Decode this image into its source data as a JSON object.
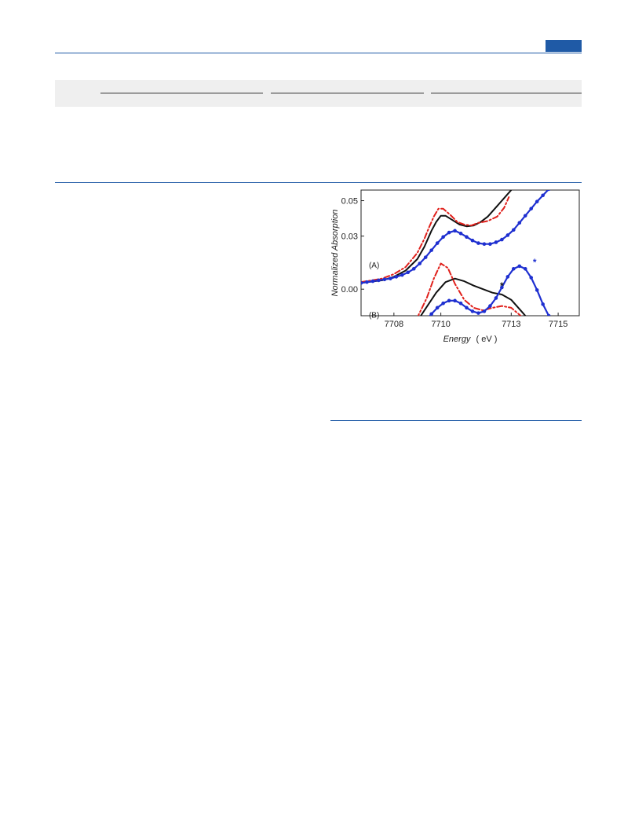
{
  "chart_data": {
    "type": "line",
    "xlabel": "Energy",
    "xunit": "( eV )",
    "ylabel": "Normalized Absorption",
    "xlim": [
      7706.6,
      7715.9
    ],
    "ylim": [
      -0.015,
      0.056
    ],
    "xticks": [
      7708,
      7710,
      7713,
      7715
    ],
    "yticks": [
      "0.00",
      "0.03",
      "0.05"
    ],
    "ytick_values": [
      0.0,
      0.03,
      0.05
    ],
    "panel_labels": [
      {
        "text": "(A)",
        "x": 7706.8,
        "y": 0.012
      },
      {
        "text": "(B)",
        "x": 7706.8,
        "y": -0.016
      }
    ],
    "annotations": [
      {
        "text": "*",
        "x": 7712.6,
        "y": 0.0,
        "color": "#111111"
      },
      {
        "text": "*",
        "x": 7714.0,
        "y": 0.0135,
        "color": "#1e2fd0"
      }
    ],
    "series": [
      {
        "panel": "A",
        "style": "solid",
        "color": "#111111",
        "x": [
          7706.6,
          7707.5,
          7708.0,
          7708.5,
          7709.0,
          7709.3,
          7709.6,
          7709.8,
          7710.0,
          7710.2,
          7710.5,
          7710.8,
          7711.1,
          7711.4,
          7711.7,
          7712.0,
          7712.4,
          7712.8,
          7713.0
        ],
        "y": [
          0.0035,
          0.005,
          0.007,
          0.0105,
          0.017,
          0.024,
          0.033,
          0.038,
          0.0415,
          0.0415,
          0.039,
          0.0365,
          0.0355,
          0.036,
          0.038,
          0.041,
          0.047,
          0.053,
          0.056
        ]
      },
      {
        "panel": "A",
        "style": "dashdot",
        "color": "#e0201b",
        "x": [
          7706.6,
          7707.5,
          7708.0,
          7708.5,
          7709.0,
          7709.3,
          7709.5,
          7709.7,
          7709.9,
          7710.1,
          7710.4,
          7710.7,
          7711.0,
          7711.3,
          7711.6,
          7712.0,
          7712.4,
          7712.7,
          7712.9
        ],
        "y": [
          0.004,
          0.006,
          0.0085,
          0.0125,
          0.0205,
          0.0285,
          0.035,
          0.041,
          0.0455,
          0.0455,
          0.042,
          0.038,
          0.0365,
          0.036,
          0.0375,
          0.0385,
          0.041,
          0.046,
          0.052
        ]
      },
      {
        "panel": "A",
        "style": "markers",
        "color": "#1e2fd0",
        "x": [
          7706.6,
          7706.85,
          7707.1,
          7707.35,
          7707.6,
          7707.85,
          7708.1,
          7708.35,
          7708.6,
          7708.85,
          7709.1,
          7709.35,
          7709.6,
          7709.85,
          7710.1,
          7710.35,
          7710.6,
          7710.85,
          7711.1,
          7711.35,
          7711.6,
          7711.85,
          7712.1,
          7712.35,
          7712.6,
          7712.85,
          7713.1,
          7713.35,
          7713.6,
          7713.85,
          7714.1,
          7714.35,
          7714.6,
          7714.85
        ],
        "y": [
          0.0035,
          0.004,
          0.0045,
          0.005,
          0.0055,
          0.006,
          0.007,
          0.008,
          0.0095,
          0.0115,
          0.0145,
          0.018,
          0.022,
          0.026,
          0.0295,
          0.032,
          0.033,
          0.0315,
          0.0295,
          0.0275,
          0.026,
          0.0255,
          0.0255,
          0.0265,
          0.028,
          0.0305,
          0.0335,
          0.0375,
          0.0415,
          0.0455,
          0.0495,
          0.053,
          0.0565,
          0.06
        ]
      },
      {
        "panel": "B",
        "style": "solid",
        "color": "#111111",
        "x": [
          7706.6,
          7708.0,
          7708.5,
          7709.0,
          7709.4,
          7709.8,
          7710.2,
          7710.6,
          7711.0,
          7711.4,
          7711.8,
          7712.2,
          7712.6,
          7713.0,
          7713.4,
          7713.8,
          7714.3,
          7715.0,
          7715.9
        ],
        "y": [
          -0.0225,
          -0.0225,
          -0.0215,
          -0.018,
          -0.01,
          -0.002,
          0.004,
          0.006,
          0.0045,
          0.002,
          0.0,
          -0.002,
          -0.003,
          -0.006,
          -0.012,
          -0.018,
          -0.022,
          -0.0225,
          -0.0225
        ]
      },
      {
        "panel": "B",
        "style": "dashdot",
        "color": "#e0201b",
        "x": [
          7706.6,
          7708.0,
          7708.6,
          7709.0,
          7709.4,
          7709.7,
          7710.0,
          7710.3,
          7710.6,
          7711.0,
          7711.4,
          7711.8,
          7712.2,
          7712.6,
          7713.0,
          7713.4,
          7713.8,
          7714.2,
          7715.0,
          7715.9
        ],
        "y": [
          -0.0225,
          -0.0225,
          -0.0215,
          -0.016,
          -0.005,
          0.006,
          0.0145,
          0.012,
          0.003,
          -0.006,
          -0.0105,
          -0.012,
          -0.0105,
          -0.0095,
          -0.0105,
          -0.015,
          -0.0195,
          -0.0215,
          -0.0225,
          -0.0225
        ]
      },
      {
        "panel": "B",
        "style": "markers",
        "color": "#1e2fd0",
        "x": [
          7706.6,
          7706.85,
          7707.1,
          7707.35,
          7707.6,
          7707.85,
          7708.1,
          7708.35,
          7708.6,
          7708.85,
          7709.1,
          7709.35,
          7709.6,
          7709.85,
          7710.1,
          7710.35,
          7710.6,
          7710.85,
          7711.1,
          7711.35,
          7711.6,
          7711.85,
          7712.1,
          7712.35,
          7712.6,
          7712.85,
          7713.1,
          7713.35,
          7713.6,
          7713.85,
          7714.1,
          7714.35,
          7714.6,
          7714.85,
          7715.1,
          7715.35,
          7715.6,
          7715.85
        ],
        "y": [
          -0.0225,
          -0.0225,
          -0.0225,
          -0.0225,
          -0.0225,
          -0.0225,
          -0.0225,
          -0.0225,
          -0.0222,
          -0.0215,
          -0.02,
          -0.0175,
          -0.014,
          -0.0105,
          -0.008,
          -0.0065,
          -0.0065,
          -0.008,
          -0.0105,
          -0.0125,
          -0.0135,
          -0.0125,
          -0.0095,
          -0.005,
          0.001,
          0.007,
          0.0115,
          0.013,
          0.0115,
          0.0065,
          -0.0005,
          -0.0085,
          -0.015,
          -0.0195,
          -0.0215,
          -0.0222,
          -0.0225,
          -0.0225
        ]
      }
    ]
  }
}
